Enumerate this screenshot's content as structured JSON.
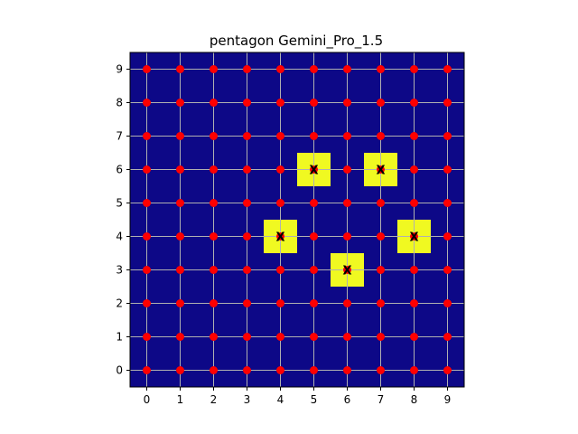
{
  "chart_data": {
    "type": "heatmap",
    "title": "pentagon Gemini_Pro_1.5",
    "xlabel": "",
    "ylabel": "",
    "xlim": [
      -0.5,
      9.5
    ],
    "ylim": [
      -0.5,
      9.5
    ],
    "x_ticks": [
      0,
      1,
      2,
      3,
      4,
      5,
      6,
      7,
      8,
      9
    ],
    "y_ticks": [
      0,
      1,
      2,
      3,
      4,
      5,
      6,
      7,
      8,
      9
    ],
    "grid": true,
    "grid_points": {
      "x": [
        0,
        1,
        2,
        3,
        4,
        5,
        6,
        7,
        8,
        9
      ],
      "y": [
        0,
        1,
        2,
        3,
        4,
        5,
        6,
        7,
        8,
        9
      ]
    },
    "highlighted_cells": [
      {
        "x": 5,
        "y": 6,
        "label": "X"
      },
      {
        "x": 7,
        "y": 6,
        "label": "X"
      },
      {
        "x": 4,
        "y": 4,
        "label": "X"
      },
      {
        "x": 8,
        "y": 4,
        "label": "X"
      },
      {
        "x": 6,
        "y": 3,
        "label": "X"
      }
    ],
    "colors": {
      "background": "#0d0887",
      "highlight": "#f0f921",
      "point": "#ff0000",
      "grid": "#b0b0b0",
      "mark": "#000000"
    }
  }
}
